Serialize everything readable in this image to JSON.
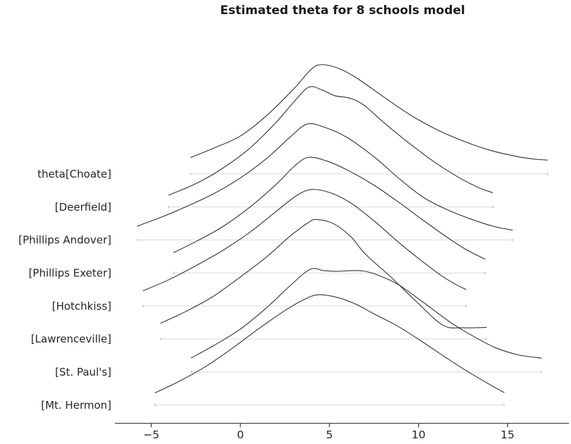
{
  "title": "Estimated theta for 8 schools model",
  "colors": {
    "curve": "#222222",
    "baseline": "#d9d9d9",
    "baseline_end": "#aaaaaa",
    "axis": "#333333",
    "text": "#262626",
    "background": "#ffffff"
  },
  "chart_data": {
    "type": "area",
    "subtype": "ridgeline-density",
    "title": "Estimated theta for 8 schools model",
    "xlabel": "",
    "ylabel": "",
    "legend": "none",
    "grid": false,
    "x_axis": {
      "range": [
        -7.0,
        18.5
      ],
      "ticks": [
        {
          "value": -5,
          "label": "−5"
        },
        {
          "value": 0,
          "label": "0"
        },
        {
          "value": 5,
          "label": "5"
        },
        {
          "value": 10,
          "label": "10"
        },
        {
          "value": 15,
          "label": "15"
        }
      ]
    },
    "layout_hints": {
      "row_order": "top-to-bottom",
      "density_units": "row-heights (1.0 = one row spacing)",
      "ridge_overlap": 3.6,
      "baseline_shown": true
    },
    "rows": [
      {
        "label": "theta[Choate]",
        "x_range": [
          -2.78,
          17.25
        ],
        "peak_x": 4.6,
        "points": [
          [
            -2.78,
            0.5
          ],
          [
            -1.5,
            0.78
          ],
          [
            0,
            1.15
          ],
          [
            1.5,
            1.78
          ],
          [
            3,
            2.58
          ],
          [
            4,
            3.18
          ],
          [
            4.6,
            3.31
          ],
          [
            5.6,
            3.18
          ],
          [
            6.6,
            2.88
          ],
          [
            8,
            2.35
          ],
          [
            9.5,
            1.8
          ],
          [
            11,
            1.35
          ],
          [
            12.5,
            1.0
          ],
          [
            14,
            0.72
          ],
          [
            15.5,
            0.53
          ],
          [
            16.5,
            0.45
          ],
          [
            17.25,
            0.42
          ]
        ]
      },
      {
        "label": "[Deerfield]",
        "x_range": [
          -4.02,
          14.17
        ],
        "peak_x": 3.85,
        "points": [
          [
            -4.02,
            0.36
          ],
          [
            -2.6,
            0.68
          ],
          [
            -1.2,
            1.1
          ],
          [
            0.4,
            1.72
          ],
          [
            1.9,
            2.5
          ],
          [
            3,
            3.18
          ],
          [
            3.85,
            3.63
          ],
          [
            4.6,
            3.54
          ],
          [
            5.3,
            3.37
          ],
          [
            6.1,
            3.3
          ],
          [
            6.9,
            3.1
          ],
          [
            8,
            2.58
          ],
          [
            9.5,
            1.92
          ],
          [
            11,
            1.32
          ],
          [
            12.4,
            0.85
          ],
          [
            13.4,
            0.58
          ],
          [
            14.17,
            0.43
          ]
        ]
      },
      {
        "label": "[Phillips Andover]",
        "x_range": [
          -5.78,
          15.27
        ],
        "peak_x": 3.75,
        "points": [
          [
            -5.78,
            0.42
          ],
          [
            -4.3,
            0.72
          ],
          [
            -3,
            1.02
          ],
          [
            -1.5,
            1.4
          ],
          [
            0,
            1.88
          ],
          [
            1.5,
            2.48
          ],
          [
            2.8,
            3.12
          ],
          [
            3.75,
            3.51
          ],
          [
            4.8,
            3.4
          ],
          [
            6,
            3.1
          ],
          [
            7.5,
            2.52
          ],
          [
            9,
            1.82
          ],
          [
            10.3,
            1.28
          ],
          [
            11.6,
            0.92
          ],
          [
            13,
            0.62
          ],
          [
            14.3,
            0.4
          ],
          [
            15.27,
            0.3
          ]
        ]
      },
      {
        "label": "[Phillips Exeter]",
        "x_range": [
          -3.74,
          13.73
        ],
        "peak_x": 3.8,
        "points": [
          [
            -3.74,
            0.62
          ],
          [
            -2.5,
            0.95
          ],
          [
            -1,
            1.4
          ],
          [
            0.5,
            1.98
          ],
          [
            2,
            2.68
          ],
          [
            3,
            3.22
          ],
          [
            3.8,
            3.5
          ],
          [
            4.8,
            3.4
          ],
          [
            6,
            3.12
          ],
          [
            7.5,
            2.66
          ],
          [
            9,
            2.1
          ],
          [
            10.25,
            1.6
          ],
          [
            11.5,
            1.12
          ],
          [
            12.7,
            0.7
          ],
          [
            13.73,
            0.42
          ]
        ]
      },
      {
        "label": "[Hotchkiss]",
        "x_range": [
          -5.46,
          12.66
        ],
        "peak_x": 4.05,
        "points": [
          [
            -5.46,
            0.46
          ],
          [
            -4,
            0.8
          ],
          [
            -2.5,
            1.22
          ],
          [
            -1,
            1.68
          ],
          [
            0.5,
            2.22
          ],
          [
            2,
            2.86
          ],
          [
            3.2,
            3.36
          ],
          [
            4.05,
            3.53
          ],
          [
            5.1,
            3.42
          ],
          [
            6.2,
            3.12
          ],
          [
            7.5,
            2.58
          ],
          [
            8.9,
            1.92
          ],
          [
            10,
            1.44
          ],
          [
            11.2,
            0.95
          ],
          [
            12,
            0.68
          ],
          [
            12.66,
            0.5
          ]
        ]
      },
      {
        "label": "[Lawrenceville]",
        "x_range": [
          -4.47,
          13.81
        ],
        "peak_x": 4.25,
        "points": [
          [
            -4.47,
            0.48
          ],
          [
            -3,
            0.85
          ],
          [
            -1.5,
            1.3
          ],
          [
            0,
            1.88
          ],
          [
            1.5,
            2.5
          ],
          [
            2.8,
            3.12
          ],
          [
            3.8,
            3.52
          ],
          [
            4.25,
            3.62
          ],
          [
            5.2,
            3.5
          ],
          [
            6.2,
            3.1
          ],
          [
            7,
            2.58
          ],
          [
            8.4,
            1.9
          ],
          [
            9.85,
            1.15
          ],
          [
            11.36,
            0.42
          ],
          [
            12.5,
            0.34
          ],
          [
            13.81,
            0.35
          ]
        ]
      },
      {
        "label": "[St. Paul's]",
        "x_range": [
          -2.75,
          16.9
        ],
        "peak_x": 3.92,
        "points": [
          [
            -2.75,
            0.43
          ],
          [
            -1.5,
            0.8
          ],
          [
            0,
            1.3
          ],
          [
            1.5,
            1.96
          ],
          [
            2.8,
            2.62
          ],
          [
            3.92,
            3.11
          ],
          [
            4.7,
            3.07
          ],
          [
            5.42,
            3.05
          ],
          [
            6.2,
            3.07
          ],
          [
            6.9,
            3.06
          ],
          [
            7.7,
            2.94
          ],
          [
            8.86,
            2.65
          ],
          [
            10.37,
            2.07
          ],
          [
            11.83,
            1.49
          ],
          [
            13.02,
            1.1
          ],
          [
            14.3,
            0.74
          ],
          [
            15.6,
            0.52
          ],
          [
            16.9,
            0.42
          ]
        ]
      },
      {
        "label": "[Mt. Hermon]",
        "x_range": [
          -4.79,
          14.8
        ],
        "peak_x": 4.4,
        "points": [
          [
            -4.79,
            0.37
          ],
          [
            -3.5,
            0.7
          ],
          [
            -2,
            1.15
          ],
          [
            -0.5,
            1.7
          ],
          [
            1,
            2.3
          ],
          [
            2.5,
            2.86
          ],
          [
            3.6,
            3.2
          ],
          [
            4.4,
            3.34
          ],
          [
            5.5,
            3.25
          ],
          [
            6.5,
            3.05
          ],
          [
            7.5,
            2.76
          ],
          [
            8.86,
            2.38
          ],
          [
            10.2,
            1.92
          ],
          [
            11.5,
            1.45
          ],
          [
            12.8,
            1.0
          ],
          [
            14,
            0.62
          ],
          [
            14.8,
            0.38
          ]
        ]
      }
    ]
  }
}
